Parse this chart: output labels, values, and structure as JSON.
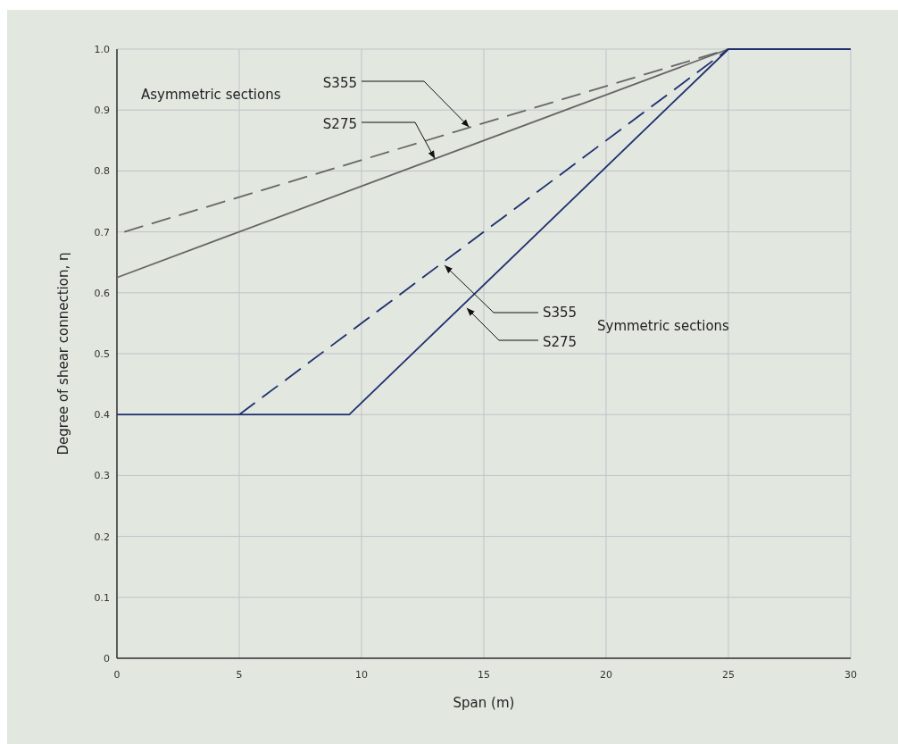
{
  "chart_data": {
    "type": "line",
    "xlabel": "Span (m)",
    "ylabel": "Degree of shear connection,  η",
    "xlim": [
      0,
      30
    ],
    "xticks": [
      0,
      5,
      10,
      15,
      20,
      25,
      30
    ],
    "ylim": [
      0,
      1
    ],
    "yticks": [
      {
        "value": 0,
        "label": "0"
      },
      0.1,
      0.2,
      0.3,
      0.4,
      0.5,
      0.6,
      0.7,
      0.8,
      0.9,
      {
        "value": 1,
        "label": "1.0"
      }
    ],
    "grid": true,
    "series": [
      {
        "color": "#666666",
        "line_style": "dashed",
        "x": [
          0.3,
          25
        ],
        "values": [
          0.7,
          1.0
        ]
      },
      {
        "color": "#666666",
        "line_style": "solid",
        "x": [
          0,
          25
        ],
        "values": [
          0.625,
          1.0
        ]
      },
      {
        "color": "#1f2f6e",
        "line_style": "dashed",
        "x": [
          5,
          25
        ],
        "values": [
          0.4,
          1.0
        ]
      },
      {
        "color": "#1f2f6e",
        "line_style": "solid",
        "x": [
          0,
          9.5,
          25,
          30
        ],
        "values": [
          0.4,
          0.4,
          1.0,
          1.0
        ]
      }
    ],
    "annotations": [
      "Asymmetric sections",
      {
        "text": "S355",
        "x": 14.4,
        "y": 0.872
      },
      {
        "text": "S275",
        "x": 13.0,
        "y": 0.82
      },
      "Symmetric sections",
      {
        "text": "S355",
        "x": 13.4,
        "y": 0.645
      },
      {
        "text": "S275",
        "x": 14.3,
        "y": 0.575
      }
    ]
  }
}
